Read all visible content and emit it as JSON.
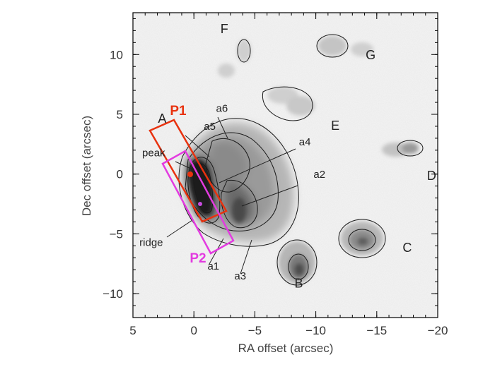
{
  "axes": {
    "xlabel": "RA offset (arcsec)",
    "ylabel": "Dec offset (arcsec)",
    "xlim": [
      5,
      -20
    ],
    "ylim": [
      -12,
      13.5
    ],
    "xticks": [
      5,
      0,
      -5,
      -10,
      -15,
      -20
    ],
    "xtick_labels": [
      "5",
      "0",
      "−5",
      "−10",
      "−15",
      "−20"
    ],
    "yticks": [
      10,
      5,
      0,
      -5,
      -10
    ],
    "ytick_labels": [
      "10",
      "5",
      "0",
      "−5",
      "−10"
    ]
  },
  "regions": [
    {
      "id": "A",
      "label": "A",
      "ra": 2.6,
      "dec": 4.3
    },
    {
      "id": "B",
      "label": "B",
      "ra": -8.6,
      "dec": -9.5
    },
    {
      "id": "C",
      "label": "C",
      "ra": -17.5,
      "dec": -6.5
    },
    {
      "id": "D",
      "label": "D",
      "ra": -19.5,
      "dec": -0.5
    },
    {
      "id": "E",
      "label": "E",
      "ra": -11.6,
      "dec": 3.7
    },
    {
      "id": "F",
      "label": "F",
      "ra": -2.5,
      "dec": 11.8
    },
    {
      "id": "G",
      "label": "G",
      "ra": -14.5,
      "dec": 9.6
    }
  ],
  "features": [
    {
      "id": "a1",
      "label": "a1",
      "ra": -1.6,
      "dec": -8.0
    },
    {
      "id": "a2",
      "label": "a2",
      "ra": -10.3,
      "dec": -0.3
    },
    {
      "id": "a3",
      "label": "a3",
      "ra": -3.8,
      "dec": -8.8
    },
    {
      "id": "a4",
      "label": "a4",
      "ra": -9.1,
      "dec": 2.4
    },
    {
      "id": "a5",
      "label": "a5",
      "ra": -1.3,
      "dec": 3.7
    },
    {
      "id": "a6",
      "label": "a6",
      "ra": -2.3,
      "dec": 5.2
    },
    {
      "id": "peak",
      "label": "peak",
      "ra": 3.3,
      "dec": 1.5
    },
    {
      "id": "ridge",
      "label": "ridge",
      "ra": 3.5,
      "dec": -6.0
    }
  ],
  "boxes": [
    {
      "id": "P1",
      "label": "P1",
      "color": "#e8320f"
    },
    {
      "id": "P2",
      "label": "P2",
      "color": "#e33be0"
    }
  ],
  "markers": [
    {
      "name": "peak-marker",
      "color": "#e8320f"
    },
    {
      "name": "ridge-marker",
      "color": "#c84be0"
    }
  ]
}
